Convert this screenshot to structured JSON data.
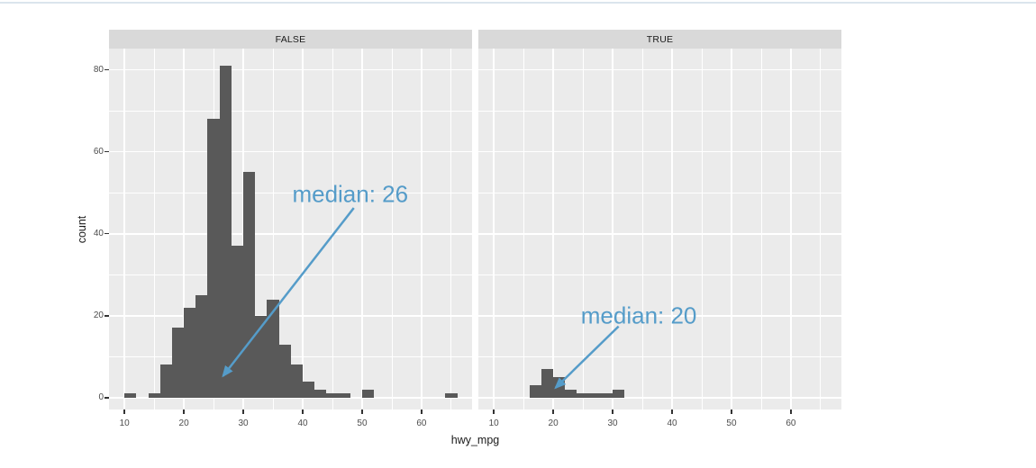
{
  "chart_data": {
    "type": "histogram",
    "xlabel": "hwy_mpg",
    "ylabel": "count",
    "bin_width": 2,
    "x_range": [
      7.4,
      68.5
    ],
    "y_range": [
      -2.9,
      85.2
    ],
    "x_ticks": [
      10,
      20,
      30,
      40,
      50,
      60
    ],
    "x_minor_ticks": [
      15,
      25,
      35,
      45,
      55,
      65
    ],
    "y_ticks": [
      0,
      20,
      40,
      60,
      80
    ],
    "y_minor_ticks": [
      10,
      30,
      50,
      70
    ],
    "grid": true,
    "legend": "none",
    "facets": [
      {
        "label": "FALSE",
        "bins": [
          {
            "start": 10,
            "count": 1
          },
          {
            "start": 14,
            "count": 1
          },
          {
            "start": 16,
            "count": 8
          },
          {
            "start": 18,
            "count": 17
          },
          {
            "start": 20,
            "count": 22
          },
          {
            "start": 22,
            "count": 25
          },
          {
            "start": 24,
            "count": 68
          },
          {
            "start": 26,
            "count": 81
          },
          {
            "start": 28,
            "count": 37
          },
          {
            "start": 30,
            "count": 55
          },
          {
            "start": 32,
            "count": 20
          },
          {
            "start": 34,
            "count": 24
          },
          {
            "start": 36,
            "count": 13
          },
          {
            "start": 38,
            "count": 8
          },
          {
            "start": 40,
            "count": 4
          },
          {
            "start": 42,
            "count": 2
          },
          {
            "start": 44,
            "count": 1
          },
          {
            "start": 46,
            "count": 1
          },
          {
            "start": 50,
            "count": 2
          },
          {
            "start": 64,
            "count": 1
          }
        ],
        "annotation": {
          "text": "median: 26",
          "x": 48,
          "y": 49.5,
          "arrow": {
            "x1": 48.6,
            "y1": 46.3,
            "x2": 26.6,
            "y2": 5.3
          }
        }
      },
      {
        "label": "TRUE",
        "bins": [
          {
            "start": 16,
            "count": 3
          },
          {
            "start": 18,
            "count": 7
          },
          {
            "start": 20,
            "count": 5
          },
          {
            "start": 22,
            "count": 2
          },
          {
            "start": 24,
            "count": 1
          },
          {
            "start": 26,
            "count": 1
          },
          {
            "start": 28,
            "count": 1
          },
          {
            "start": 30,
            "count": 2
          }
        ],
        "annotation": {
          "text": "median: 20",
          "x": 34.4,
          "y": 20,
          "arrow": {
            "x1": 31.0,
            "y1": 17.4,
            "x2": 20.4,
            "y2": 2.4
          }
        }
      }
    ],
    "colors": {
      "bar": "#595959",
      "panel_bg": "#ebebeb",
      "strip_bg": "#d9d9d9",
      "grid": "#ffffff",
      "annotation": "#559cc9",
      "axis_text": "#4d4d4d",
      "title_text": "#1a1a1a",
      "tick_mark": "#333333",
      "top_rule": "#dbe5ed"
    }
  }
}
